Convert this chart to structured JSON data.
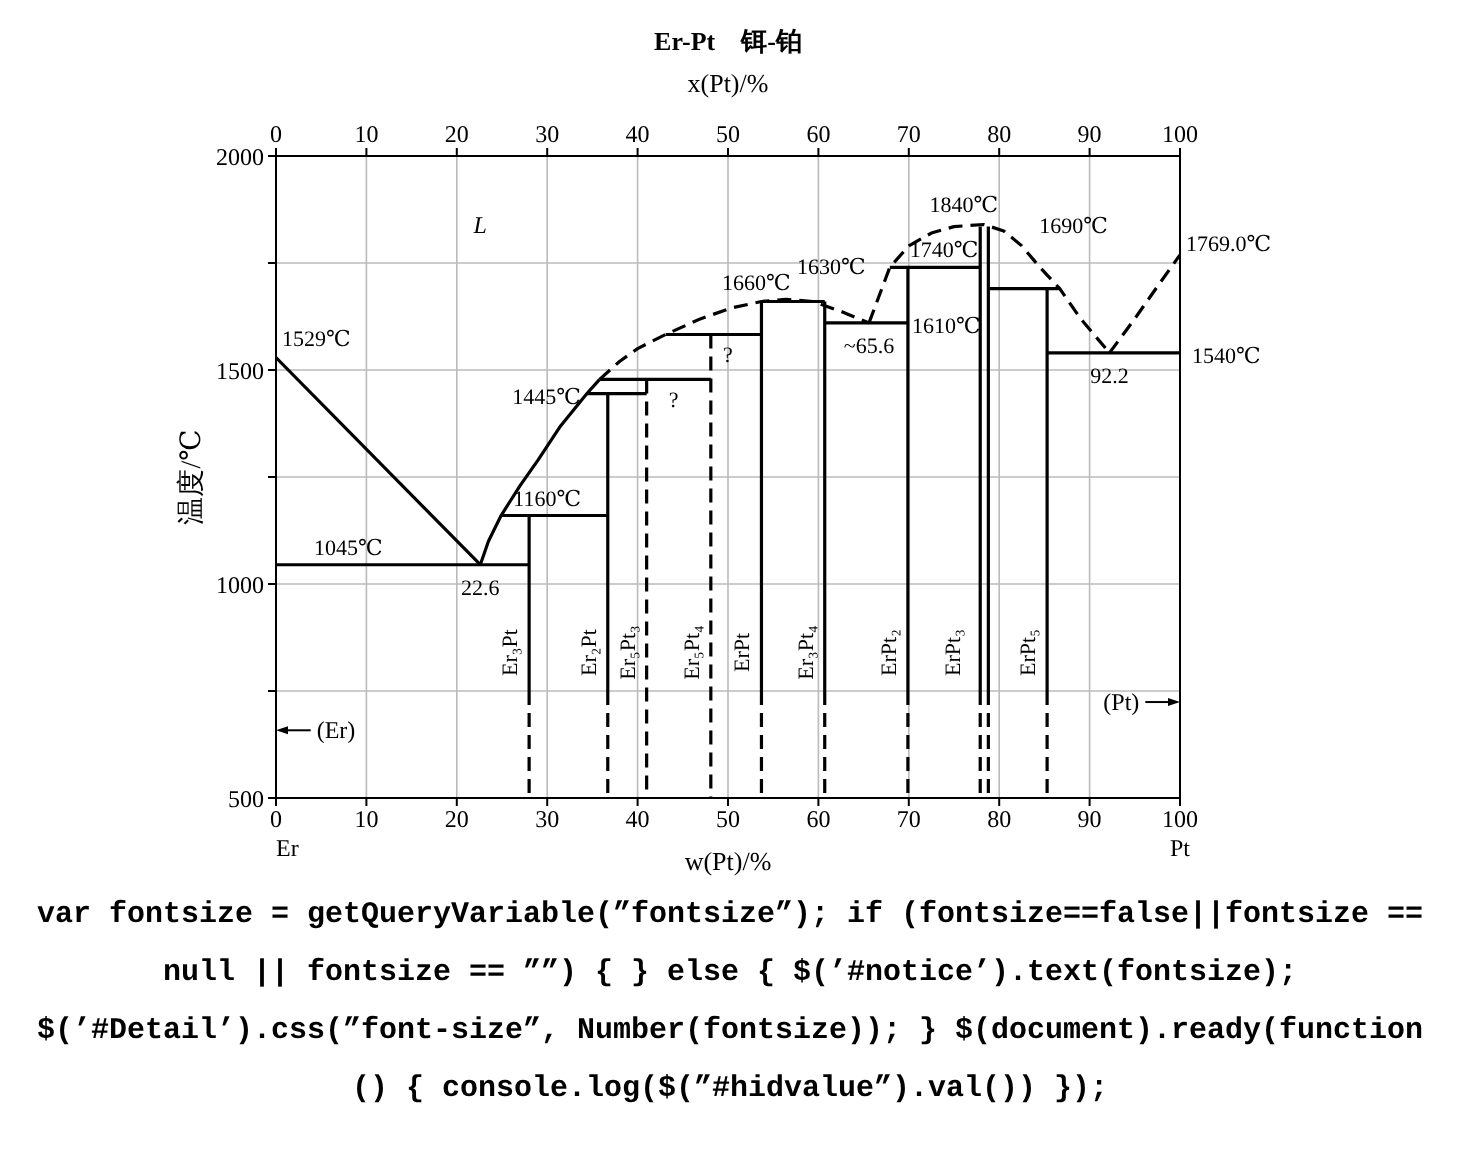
{
  "chart_data": {
    "type": "line",
    "title": "Er-Pt　铒-铂",
    "xlabel": "w(Pt)/%",
    "x2label": "x(Pt)/%",
    "ylabel": "温度/℃",
    "xlim": [
      0,
      100
    ],
    "xticks": [
      0,
      10,
      20,
      30,
      40,
      50,
      60,
      70,
      80,
      90,
      100
    ],
    "x2lim": [
      0,
      100
    ],
    "x2ticks": [
      0,
      10,
      20,
      30,
      40,
      50,
      60,
      70,
      80,
      90,
      100
    ],
    "ylim": [
      500,
      2000
    ],
    "yticks": [
      500,
      {
        "value": 750,
        "label": null
      },
      1000,
      {
        "value": 1250,
        "label": null
      },
      1500,
      {
        "value": 1750,
        "label": null
      },
      2000
    ],
    "grid": true,
    "series": [
      {
        "type": "line",
        "color": "#000000",
        "line_style": "solid",
        "x": [
          0,
          22.6
        ],
        "values": [
          1529,
          1045
        ]
      },
      {
        "type": "line",
        "color": "#000000",
        "line_style": "solid",
        "x": [
          0,
          28
        ],
        "values": [
          1045,
          1045
        ]
      },
      {
        "type": "line",
        "color": "#000000",
        "line_style": "solid",
        "x": [
          22.6,
          23.5,
          24.9,
          27,
          29,
          31.5,
          34.4,
          35.8
        ],
        "values": [
          1045,
          1100,
          1160,
          1230,
          1290,
          1370,
          1445,
          1478
        ]
      },
      {
        "type": "line",
        "color": "#000000",
        "line_style": "dashed",
        "x": [
          35.8,
          38,
          40,
          43.1,
          47,
          50.4,
          53.7,
          56.4,
          59.4,
          62.6,
          65.6
        ],
        "values": [
          1478,
          1520,
          1550,
          1583,
          1620,
          1645,
          1660,
          1665,
          1660,
          1636,
          1610
        ]
      },
      {
        "type": "line",
        "color": "#000000",
        "line_style": "solid",
        "x": [
          24.9,
          36.7
        ],
        "values": [
          1160,
          1160
        ]
      },
      {
        "type": "line",
        "color": "#000000",
        "line_style": "solid",
        "x": [
          34.4,
          41
        ],
        "values": [
          1445,
          1445
        ]
      },
      {
        "type": "line",
        "color": "#000000",
        "line_style": "solid",
        "x": [
          35.8,
          48.1
        ],
        "values": [
          1478,
          1478
        ]
      },
      {
        "type": "line",
        "color": "#000000",
        "line_style": "solid",
        "x": [
          43.1,
          53.7
        ],
        "values": [
          1583,
          1583
        ]
      },
      {
        "type": "line",
        "color": "#000000",
        "line_style": "solid",
        "x": [
          53.7,
          60.7
        ],
        "values": [
          1660,
          1660
        ]
      },
      {
        "type": "line",
        "color": "#000000",
        "line_style": "solid",
        "x": [
          60.7,
          69.9
        ],
        "values": [
          1610,
          1610
        ]
      },
      {
        "type": "line",
        "color": "#000000",
        "line_style": "solid",
        "x": [
          67.9,
          77.9
        ],
        "values": [
          1740,
          1740
        ]
      },
      {
        "type": "line",
        "color": "#000000",
        "line_style": "solid",
        "x": [
          78.8,
          86.7
        ],
        "values": [
          1690,
          1690
        ]
      },
      {
        "type": "line",
        "color": "#000000",
        "line_style": "solid",
        "x": [
          85.3,
          100
        ],
        "values": [
          1540,
          1540
        ]
      },
      {
        "type": "line",
        "color": "#000000",
        "line_style": "dashed",
        "x": [
          65.6,
          67.9,
          70,
          72.5,
          75,
          78.3,
          80.5,
          82.5,
          84.5,
          86.7,
          89,
          92.2
        ],
        "values": [
          1610,
          1740,
          1790,
          1820,
          1835,
          1840,
          1825,
          1790,
          1740,
          1690,
          1620,
          1540
        ]
      },
      {
        "type": "line",
        "color": "#000000",
        "line_style": "dashed",
        "x": [
          92.2,
          95,
          97.5,
          100
        ],
        "values": [
          1540,
          1620,
          1695,
          1769
        ]
      },
      {
        "type": "line",
        "color": "#000000",
        "line_style": "solid",
        "x": [
          28,
          28
        ],
        "values": [
          1160,
          750
        ]
      },
      {
        "type": "line",
        "color": "#000000",
        "line_style": "dashed",
        "x": [
          28,
          28
        ],
        "values": [
          750,
          500
        ]
      },
      {
        "type": "line",
        "color": "#000000",
        "line_style": "solid",
        "x": [
          36.7,
          36.7
        ],
        "values": [
          1445,
          750
        ]
      },
      {
        "type": "line",
        "color": "#000000",
        "line_style": "dashed",
        "x": [
          36.7,
          36.7
        ],
        "values": [
          750,
          500
        ]
      },
      {
        "type": "line",
        "color": "#000000",
        "line_style": "dashed",
        "x": [
          41,
          41
        ],
        "values": [
          1478,
          500
        ]
      },
      {
        "type": "line",
        "color": "#000000",
        "line_style": "dashed",
        "x": [
          48.1,
          48.1
        ],
        "values": [
          1583,
          500
        ]
      },
      {
        "type": "line",
        "color": "#000000",
        "line_style": "solid",
        "x": [
          53.7,
          53.7
        ],
        "values": [
          1660,
          750
        ]
      },
      {
        "type": "line",
        "color": "#000000",
        "line_style": "dashed",
        "x": [
          53.7,
          53.7
        ],
        "values": [
          750,
          500
        ]
      },
      {
        "type": "line",
        "color": "#000000",
        "line_style": "solid",
        "x": [
          60.7,
          60.7
        ],
        "values": [
          1660,
          750
        ]
      },
      {
        "type": "line",
        "color": "#000000",
        "line_style": "dashed",
        "x": [
          60.7,
          60.7
        ],
        "values": [
          750,
          500
        ]
      },
      {
        "type": "line",
        "color": "#000000",
        "line_style": "solid",
        "x": [
          69.9,
          69.9
        ],
        "values": [
          1740,
          750
        ]
      },
      {
        "type": "line",
        "color": "#000000",
        "line_style": "dashed",
        "x": [
          69.9,
          69.9
        ],
        "values": [
          750,
          500
        ]
      },
      {
        "type": "line",
        "color": "#000000",
        "line_style": "solid",
        "x": [
          77.9,
          77.9
        ],
        "values": [
          1835,
          750
        ]
      },
      {
        "type": "line",
        "color": "#000000",
        "line_style": "dashed",
        "x": [
          77.9,
          77.9
        ],
        "values": [
          750,
          500
        ]
      },
      {
        "type": "line",
        "color": "#000000",
        "line_style": "solid",
        "x": [
          78.8,
          78.8
        ],
        "values": [
          1835,
          750
        ]
      },
      {
        "type": "line",
        "color": "#000000",
        "line_style": "dashed",
        "x": [
          78.8,
          78.8
        ],
        "values": [
          750,
          500
        ]
      },
      {
        "type": "line",
        "color": "#000000",
        "line_style": "solid",
        "x": [
          85.3,
          85.3
        ],
        "values": [
          1690,
          750
        ]
      },
      {
        "type": "line",
        "color": "#000000",
        "line_style": "dashed",
        "x": [
          85.3,
          85.3
        ],
        "values": [
          750,
          500
        ]
      }
    ],
    "annotations": [
      "L",
      {
        "text": "1529℃",
        "x": 0,
        "y": 1529
      },
      {
        "text": "1045℃",
        "x": 8,
        "y": 1045
      },
      {
        "text": "22.6",
        "x": 22.6,
        "y": 1045
      },
      {
        "text": "1160℃",
        "x": 30,
        "y": 1160
      },
      {
        "text": "1445℃",
        "x": 34.4,
        "y": 1445
      },
      {
        "text": "?",
        "x": 44,
        "y": 1478
      },
      {
        "text": "?",
        "x": 50,
        "y": 1583
      },
      {
        "text": "1660℃",
        "x": 53.8,
        "y": 1660
      },
      {
        "text": "1630℃",
        "x": 59.4,
        "y": 1660
      },
      {
        "text": "~65.6",
        "x": 65.6,
        "y": 1610
      },
      {
        "text": "1610℃",
        "x": 69.9,
        "y": 1610
      },
      {
        "text": "1740℃",
        "x": 73.9,
        "y": 1740
      },
      {
        "text": "1840℃",
        "x": 78.3,
        "y": 1840
      },
      {
        "text": "1690℃",
        "x": 84,
        "y": 1690
      },
      {
        "text": "1769.0℃",
        "x": 100,
        "y": 1769
      },
      {
        "text": "1540℃",
        "x": 100,
        "y": 1540
      },
      {
        "text": "92.2",
        "x": 92.2,
        "y": 1540
      },
      {
        "text": "Er₃Pt",
        "x": 28,
        "y": 840
      },
      {
        "text": "Er₂Pt",
        "x": 36.7,
        "y": 840
      },
      {
        "text": "Er₅Pt₃",
        "x": 41,
        "y": 840
      },
      {
        "text": "Er₅Pt₄",
        "x": 48.1,
        "y": 840
      },
      {
        "text": "ErPt",
        "x": 53.7,
        "y": 840
      },
      {
        "text": "Er₃Pt₄",
        "x": 60.7,
        "y": 840
      },
      {
        "text": "ErPt₂",
        "x": 69.9,
        "y": 840
      },
      {
        "text": "ErPt₃",
        "x": 77.9,
        "y": 840
      },
      {
        "text": "ErPt₅",
        "x": 85.3,
        "y": 840
      },
      "(Er)",
      "(Pt)",
      "Er",
      "Pt",
      "var fontsize = getQueryVariable(”fontsize”); if (fontsize==false||fontsize == null || fontsize == ””) { } else { $(’#notice’).text(fontsize); $(’#Detail’).css(”font-size”, Number(fontsize)); } $(document).ready(function () { console.log($(”#hidvalue”).val()) });"
    ]
  }
}
